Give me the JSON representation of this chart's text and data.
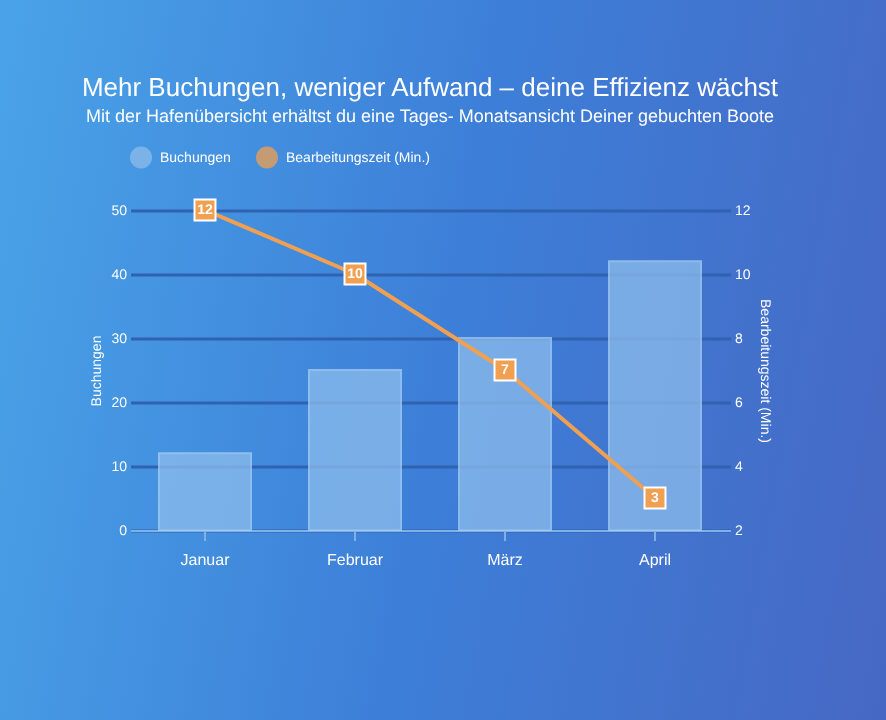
{
  "chart_data": {
    "type": "bar",
    "title": "Mehr Buchungen, weniger Aufwand – deine Effizienz wächst",
    "subtitle": "Mit der Hafenübersicht erhältst du eine Tages- Monatsansicht Deiner gebuchten Boote",
    "categories": [
      "Januar",
      "Februar",
      "März",
      "April"
    ],
    "series": [
      {
        "name": "Buchungen",
        "color": "#8dbdec",
        "values": [
          12,
          25,
          30,
          42
        ]
      },
      {
        "name": "Bearbeitungszeit (Min.)",
        "type": "line",
        "axis": "y2",
        "color": "#f0a050",
        "values": [
          12,
          10,
          7,
          3
        ],
        "value_labels": [
          "12",
          "10",
          "7",
          "3"
        ]
      }
    ],
    "ylabel": "Buchungen",
    "y2label": "Bearbeitungszeit (Min.)",
    "ylim": [
      0,
      50
    ],
    "yticks": [
      0,
      10,
      20,
      30,
      40,
      50
    ],
    "y2lim": [
      2,
      12
    ],
    "y2ticks": [
      2,
      4,
      6,
      8,
      10,
      12
    ],
    "grid": "y",
    "legend": "top",
    "marker": "square",
    "line_style": "solid"
  }
}
